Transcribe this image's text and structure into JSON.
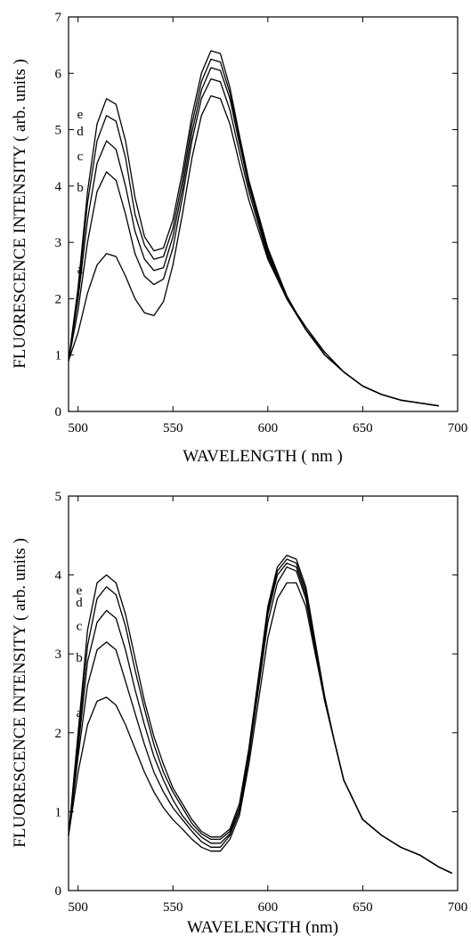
{
  "chart_data": [
    {
      "type": "line",
      "xlabel": "WAVELENGTH ( nm )",
      "ylabel": "FLUORESCENCE INTENSITY ( arb. units )",
      "xlim": [
        495,
        700
      ],
      "ylim": [
        0,
        7
      ],
      "xticks": [
        "500",
        "550",
        "600",
        "650",
        "700"
      ],
      "yticks": [
        "0",
        "1",
        "2",
        "3",
        "4",
        "5",
        "6",
        "7"
      ],
      "grid": false,
      "series": [
        {
          "name": "a",
          "color": "#000000",
          "x": [
            495,
            500,
            505,
            510,
            515,
            520,
            525,
            530,
            535,
            540,
            545,
            550,
            555,
            560,
            565,
            570,
            575,
            580,
            585,
            590,
            600,
            610,
            620,
            630,
            640,
            650,
            660,
            670,
            680,
            690
          ],
          "y": [
            0.9,
            1.4,
            2.1,
            2.6,
            2.8,
            2.75,
            2.4,
            2.0,
            1.75,
            1.7,
            1.95,
            2.6,
            3.5,
            4.5,
            5.25,
            5.6,
            5.55,
            5.1,
            4.4,
            3.75,
            2.7,
            2.0,
            1.5,
            1.05,
            0.7,
            0.45,
            0.3,
            0.2,
            0.15,
            0.1
          ]
        },
        {
          "name": "b",
          "color": "#000000",
          "x": [
            495,
            500,
            505,
            510,
            515,
            520,
            525,
            530,
            535,
            540,
            545,
            550,
            555,
            560,
            565,
            570,
            575,
            580,
            585,
            590,
            600,
            610,
            620,
            630,
            640,
            650,
            660,
            670,
            680,
            690
          ],
          "y": [
            0.9,
            1.8,
            3.0,
            3.9,
            4.25,
            4.1,
            3.5,
            2.8,
            2.4,
            2.25,
            2.35,
            2.9,
            3.8,
            4.8,
            5.55,
            5.9,
            5.85,
            5.35,
            4.6,
            3.9,
            2.75,
            2.0,
            1.45,
            1.05,
            0.7,
            0.45,
            0.3,
            0.2,
            0.15,
            0.1
          ]
        },
        {
          "name": "c",
          "color": "#000000",
          "x": [
            495,
            500,
            505,
            510,
            515,
            520,
            525,
            530,
            535,
            540,
            545,
            550,
            555,
            560,
            565,
            570,
            575,
            580,
            585,
            590,
            600,
            610,
            620,
            630,
            640,
            650,
            660,
            670,
            680,
            690
          ],
          "y": [
            0.9,
            2.0,
            3.4,
            4.4,
            4.8,
            4.65,
            4.0,
            3.2,
            2.7,
            2.5,
            2.55,
            3.1,
            3.95,
            4.95,
            5.7,
            6.1,
            6.05,
            5.55,
            4.75,
            4.0,
            2.8,
            2.0,
            1.45,
            1.0,
            0.7,
            0.45,
            0.3,
            0.2,
            0.15,
            0.1
          ]
        },
        {
          "name": "d",
          "color": "#000000",
          "x": [
            495,
            500,
            505,
            510,
            515,
            520,
            525,
            530,
            535,
            540,
            545,
            550,
            555,
            560,
            565,
            570,
            575,
            580,
            585,
            590,
            600,
            610,
            620,
            630,
            640,
            650,
            660,
            670,
            680,
            690
          ],
          "y": [
            0.9,
            2.1,
            3.7,
            4.8,
            5.25,
            5.15,
            4.5,
            3.5,
            2.95,
            2.7,
            2.75,
            3.25,
            4.1,
            5.1,
            5.85,
            6.25,
            6.2,
            5.65,
            4.85,
            4.05,
            2.85,
            2.05,
            1.45,
            1.0,
            0.7,
            0.45,
            0.3,
            0.2,
            0.15,
            0.1
          ]
        },
        {
          "name": "e",
          "color": "#000000",
          "x": [
            495,
            500,
            505,
            510,
            515,
            520,
            525,
            530,
            535,
            540,
            545,
            550,
            555,
            560,
            565,
            570,
            575,
            580,
            585,
            590,
            600,
            610,
            620,
            630,
            640,
            650,
            660,
            670,
            680,
            690
          ],
          "y": [
            0.9,
            2.2,
            3.9,
            5.1,
            5.55,
            5.45,
            4.8,
            3.8,
            3.1,
            2.85,
            2.9,
            3.4,
            4.25,
            5.25,
            6.0,
            6.4,
            6.35,
            5.75,
            4.9,
            4.1,
            2.9,
            2.05,
            1.45,
            1.0,
            0.7,
            0.45,
            0.3,
            0.2,
            0.15,
            0.1
          ]
        }
      ]
    },
    {
      "type": "line",
      "xlabel": "WAVELENGTH (nm)",
      "ylabel": "FLUORESCENCE INTENSITY ( arb. units )",
      "xlim": [
        495,
        700
      ],
      "ylim": [
        0,
        5
      ],
      "xticks": [
        "500",
        "550",
        "600",
        "650",
        "700"
      ],
      "yticks": [
        "0",
        "1",
        "2",
        "3",
        "4",
        "5"
      ],
      "grid": false,
      "series": [
        {
          "name": "a",
          "color": "#000000",
          "x": [
            495,
            500,
            505,
            510,
            515,
            520,
            525,
            530,
            535,
            540,
            545,
            550,
            555,
            560,
            565,
            570,
            575,
            580,
            585,
            590,
            595,
            600,
            605,
            610,
            615,
            620,
            625,
            630,
            635,
            640,
            650,
            660,
            670,
            680,
            690,
            697
          ],
          "y": [
            0.7,
            1.5,
            2.1,
            2.4,
            2.45,
            2.35,
            2.1,
            1.8,
            1.5,
            1.25,
            1.05,
            0.9,
            0.78,
            0.65,
            0.55,
            0.5,
            0.5,
            0.65,
            0.95,
            1.6,
            2.4,
            3.2,
            3.7,
            3.9,
            3.9,
            3.6,
            3.0,
            2.4,
            1.9,
            1.4,
            0.9,
            0.7,
            0.55,
            0.45,
            0.3,
            0.22
          ]
        },
        {
          "name": "b",
          "color": "#000000",
          "x": [
            495,
            500,
            505,
            510,
            515,
            520,
            525,
            530,
            535,
            540,
            545,
            550,
            555,
            560,
            565,
            570,
            575,
            580,
            585,
            590,
            595,
            600,
            605,
            610,
            615,
            620,
            625,
            630,
            635,
            640,
            650,
            660,
            670,
            680,
            690,
            697
          ],
          "y": [
            0.7,
            1.7,
            2.6,
            3.05,
            3.15,
            3.05,
            2.65,
            2.25,
            1.85,
            1.5,
            1.25,
            1.05,
            0.9,
            0.75,
            0.62,
            0.55,
            0.55,
            0.7,
            1.0,
            1.7,
            2.55,
            3.4,
            3.9,
            4.1,
            4.05,
            3.7,
            3.05,
            2.4,
            1.9,
            1.4,
            0.9,
            0.7,
            0.55,
            0.45,
            0.3,
            0.22
          ]
        },
        {
          "name": "c",
          "color": "#000000",
          "x": [
            495,
            500,
            505,
            510,
            515,
            520,
            525,
            530,
            535,
            540,
            545,
            550,
            555,
            560,
            565,
            570,
            575,
            580,
            585,
            590,
            595,
            600,
            605,
            610,
            615,
            620,
            625,
            630,
            635,
            640,
            650,
            660,
            670,
            680,
            690,
            697
          ],
          "y": [
            0.7,
            1.8,
            2.9,
            3.4,
            3.55,
            3.45,
            3.05,
            2.55,
            2.1,
            1.7,
            1.4,
            1.15,
            0.95,
            0.8,
            0.68,
            0.6,
            0.6,
            0.72,
            1.0,
            1.7,
            2.6,
            3.5,
            4.0,
            4.15,
            4.1,
            3.75,
            3.05,
            2.4,
            1.9,
            1.4,
            0.9,
            0.7,
            0.55,
            0.45,
            0.3,
            0.22
          ]
        },
        {
          "name": "d",
          "color": "#000000",
          "x": [
            495,
            500,
            505,
            510,
            515,
            520,
            525,
            530,
            535,
            540,
            545,
            550,
            555,
            560,
            565,
            570,
            575,
            580,
            585,
            590,
            595,
            600,
            605,
            610,
            615,
            620,
            625,
            630,
            635,
            640,
            650,
            660,
            670,
            680,
            690,
            697
          ],
          "y": [
            0.7,
            1.9,
            3.1,
            3.7,
            3.85,
            3.75,
            3.35,
            2.8,
            2.3,
            1.85,
            1.5,
            1.25,
            1.05,
            0.85,
            0.72,
            0.65,
            0.65,
            0.75,
            1.05,
            1.75,
            2.65,
            3.55,
            4.05,
            4.2,
            4.15,
            3.8,
            3.1,
            2.45,
            1.9,
            1.4,
            0.9,
            0.7,
            0.55,
            0.45,
            0.3,
            0.22
          ]
        },
        {
          "name": "e",
          "color": "#000000",
          "x": [
            495,
            500,
            505,
            510,
            515,
            520,
            525,
            530,
            535,
            540,
            545,
            550,
            555,
            560,
            565,
            570,
            575,
            580,
            585,
            590,
            595,
            600,
            605,
            610,
            615,
            620,
            625,
            630,
            635,
            640,
            650,
            660,
            670,
            680,
            690,
            697
          ],
          "y": [
            0.7,
            2.0,
            3.3,
            3.9,
            4.0,
            3.9,
            3.5,
            2.95,
            2.4,
            1.95,
            1.6,
            1.3,
            1.1,
            0.9,
            0.75,
            0.68,
            0.68,
            0.78,
            1.1,
            1.8,
            2.7,
            3.6,
            4.1,
            4.25,
            4.2,
            3.85,
            3.15,
            2.45,
            1.9,
            1.4,
            0.9,
            0.7,
            0.55,
            0.45,
            0.3,
            0.22
          ]
        }
      ]
    }
  ]
}
